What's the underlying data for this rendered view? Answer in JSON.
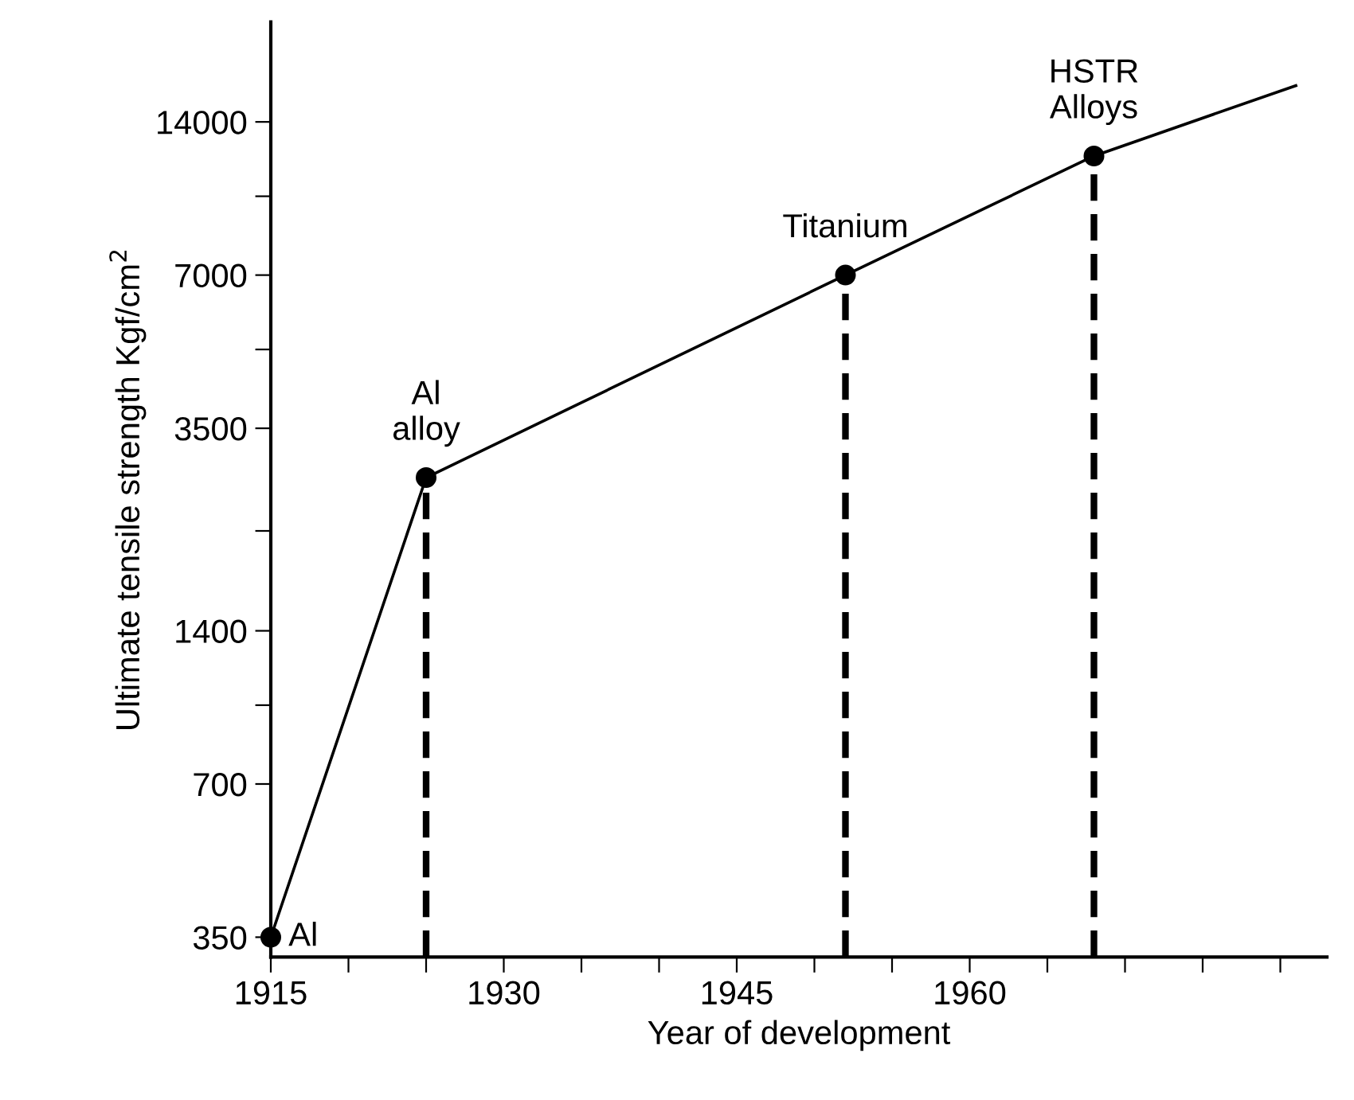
{
  "chart_data": {
    "type": "line",
    "xlabel": "Year of development",
    "ylabel": "Ultimate tensile strength Kgf/cm$^{2}$",
    "log": "y",
    "xlim": [
      1915,
      1983
    ],
    "xticks": [
      1915,
      {
        "value": 1920,
        "label": null
      },
      {
        "value": 1925,
        "label": null
      },
      1930,
      {
        "value": 1935,
        "label": null
      },
      {
        "value": 1940,
        "label": null
      },
      1945,
      {
        "value": 1950,
        "label": null
      },
      {
        "value": 1955,
        "label": null
      },
      1960,
      {
        "value": 1965,
        "label": null
      },
      {
        "value": 1970,
        "label": null
      },
      {
        "value": 1975,
        "label": null
      },
      {
        "value": 1980,
        "label": null
      }
    ],
    "ylim": [
      320,
      22000
    ],
    "yticks": [
      350,
      700,
      {
        "value": 1000,
        "label": null
      },
      1400,
      {
        "value": 2200,
        "label": null
      },
      3500,
      {
        "value": 5000,
        "label": null
      },
      7000,
      {
        "value": 10000,
        "label": null
      },
      14000
    ],
    "grid": false,
    "series": [
      {
        "color": "#000000",
        "x": [
          1915,
          1925,
          1952,
          1968,
          1981
        ],
        "values": [
          350,
          2800,
          7000,
          12000,
          16500
        ],
        "marker": "none",
        "line_style": "solid"
      },
      {
        "type": "scatter",
        "color": "#000000",
        "x": [
          1915,
          1925,
          1952,
          1968
        ],
        "values": [
          350,
          2800,
          7000,
          12000
        ],
        "marker": "circle"
      },
      {
        "color": "#000000",
        "x": [
          1925,
          1925
        ],
        "values": [
          320,
          2800
        ],
        "marker": "none",
        "line_style": "dashed"
      },
      {
        "color": "#000000",
        "x": [
          1952,
          1952
        ],
        "values": [
          320,
          7000
        ],
        "marker": "none",
        "line_style": "dashed"
      },
      {
        "color": "#000000",
        "x": [
          1968,
          1968
        ],
        "values": [
          320,
          12000
        ],
        "marker": "none",
        "line_style": "dashed"
      }
    ],
    "annotations": [
      {
        "text": "Al",
        "x": 1915,
        "y": 350
      },
      {
        "text": "Al\nalloy",
        "x": 1925,
        "y": 2800
      },
      {
        "text": "Titanium",
        "x": 1952,
        "y": 7000
      },
      {
        "text": "HSTR\nAlloys",
        "x": 1968,
        "y": 12000
      }
    ]
  }
}
